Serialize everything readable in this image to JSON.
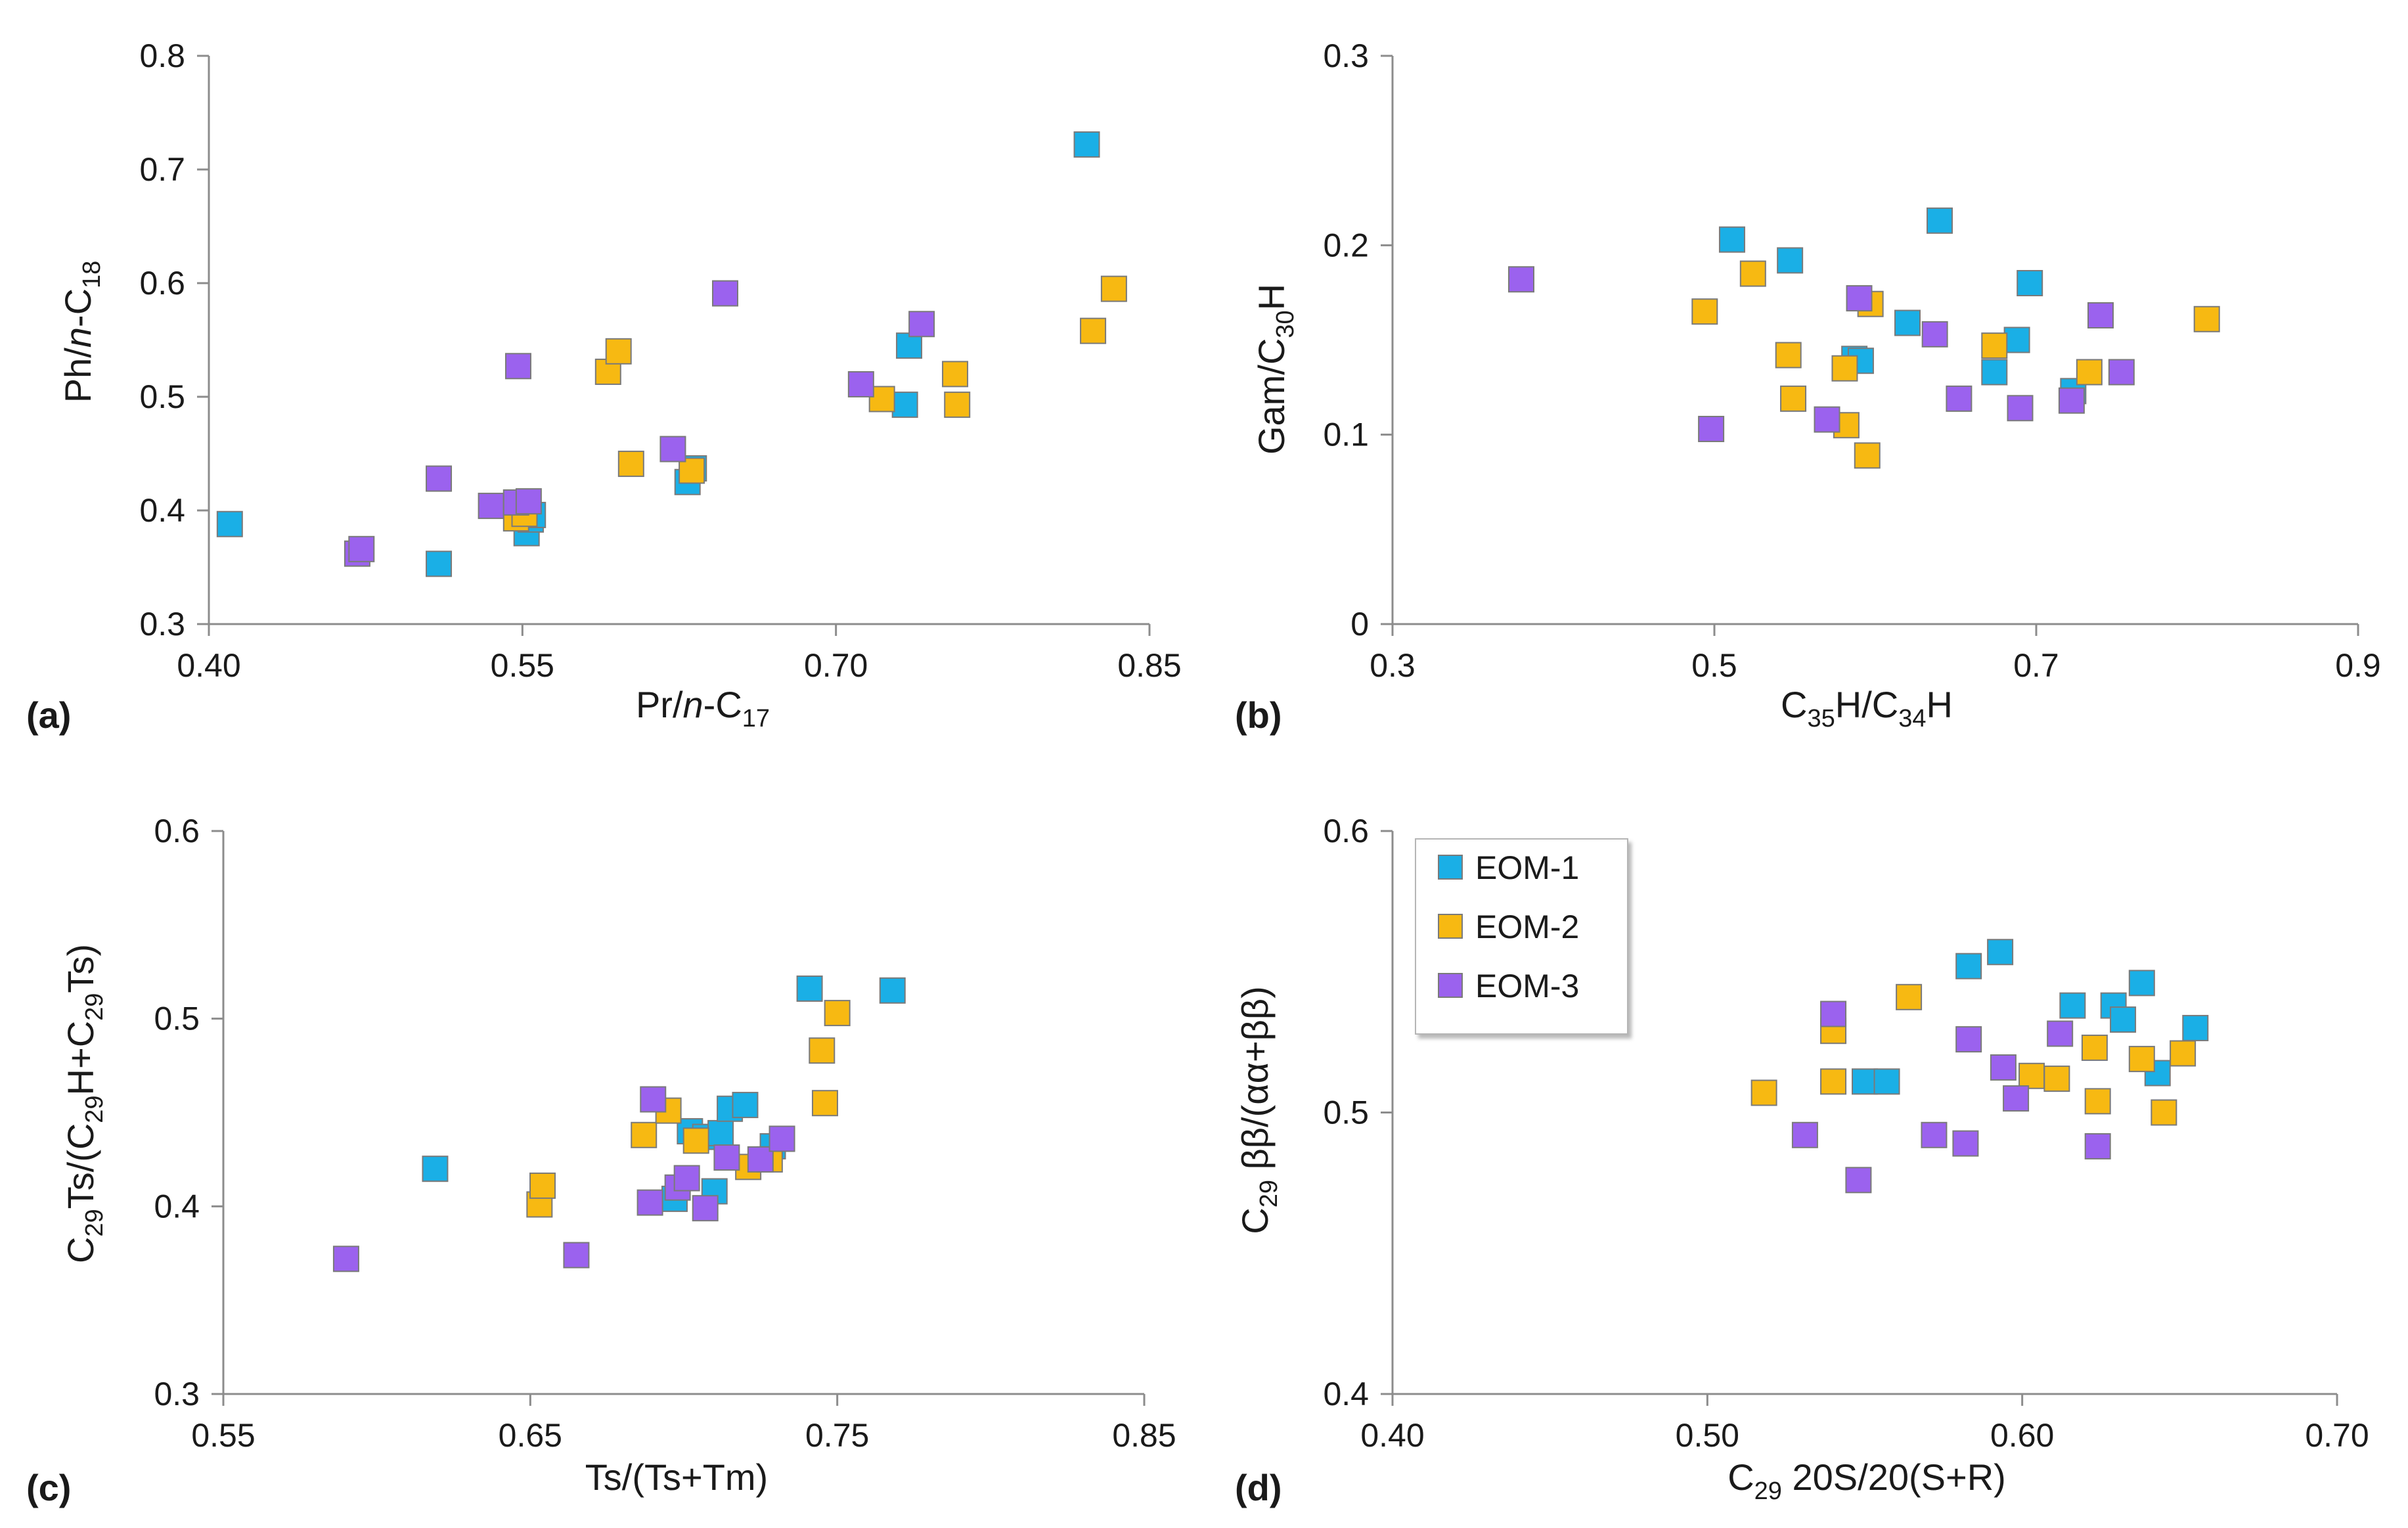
{
  "legend": [
    {
      "name": "EOM-1",
      "color": "#1AAFE6"
    },
    {
      "name": "EOM-2",
      "color": "#F7B912"
    },
    {
      "name": "EOM-3",
      "color": "#9B62EE"
    }
  ],
  "chart_data": [
    {
      "id": "a",
      "panel_label": "(a)",
      "type": "scatter",
      "xlabel": "Pr/n-C17",
      "xlabel_parts": {
        "a": "Pr/",
        "b": "n",
        "c": "-C",
        "sub": "17"
      },
      "ylabel": "Ph/n-C18",
      "ylabel_parts": {
        "a": "Ph/",
        "b": "n",
        "c": "-C",
        "sub": "18"
      },
      "xlim": [
        0.4,
        0.85
      ],
      "ylim": [
        0.3,
        0.8
      ],
      "xticks": [
        "0.40",
        "0.55",
        "0.70",
        "0.85"
      ],
      "yticks": [
        "0.3",
        "0.4",
        "0.5",
        "0.6",
        "0.7",
        "0.8"
      ],
      "series": [
        {
          "name": "EOM-1",
          "x": [
            0.41,
            0.51,
            0.552,
            0.554,
            0.555,
            0.629,
            0.632,
            0.733,
            0.735,
            0.82
          ],
          "y": [
            0.388,
            0.353,
            0.38,
            0.392,
            0.396,
            0.425,
            0.437,
            0.493,
            0.545,
            0.722
          ]
        },
        {
          "name": "EOM-2",
          "x": [
            0.547,
            0.551,
            0.591,
            0.596,
            0.602,
            0.631,
            0.722,
            0.757,
            0.758,
            0.823,
            0.833
          ],
          "y": [
            0.393,
            0.397,
            0.522,
            0.54,
            0.441,
            0.435,
            0.498,
            0.52,
            0.493,
            0.558,
            0.595
          ]
        },
        {
          "name": "EOM-3",
          "x": [
            0.471,
            0.473,
            0.51,
            0.535,
            0.547,
            0.548,
            0.553,
            0.622,
            0.647,
            0.712,
            0.741
          ],
          "y": [
            0.362,
            0.366,
            0.428,
            0.404,
            0.407,
            0.527,
            0.408,
            0.454,
            0.591,
            0.511,
            0.564
          ]
        }
      ]
    },
    {
      "id": "b",
      "panel_label": "(b)",
      "type": "scatter",
      "xlabel": "C35H/C34H",
      "xlabel_parts": {
        "a": "C",
        "sub1": "35",
        "b": "H/C",
        "sub2": "34",
        "c": "H"
      },
      "ylabel": "Gam/C30H",
      "ylabel_parts": {
        "a": "Gam/C",
        "sub": "30",
        "b": "H"
      },
      "xlim": [
        0.3,
        0.9
      ],
      "ylim": [
        0,
        0.3
      ],
      "xticks": [
        "0.3",
        "0.5",
        "0.7",
        "0.9"
      ],
      "yticks": [
        "0",
        "0.1",
        "0.2",
        "0.3"
      ],
      "series": [
        {
          "name": "EOM-1",
          "x": [
            0.511,
            0.547,
            0.587,
            0.591,
            0.62,
            0.64,
            0.674,
            0.688,
            0.696,
            0.723
          ],
          "y": [
            0.203,
            0.192,
            0.14,
            0.139,
            0.159,
            0.213,
            0.133,
            0.15,
            0.18,
            0.123
          ]
        },
        {
          "name": "EOM-2",
          "x": [
            0.494,
            0.524,
            0.546,
            0.549,
            0.581,
            0.582,
            0.595,
            0.597,
            0.674,
            0.733,
            0.806
          ],
          "y": [
            0.165,
            0.185,
            0.142,
            0.119,
            0.135,
            0.105,
            0.089,
            0.169,
            0.147,
            0.133,
            0.161
          ]
        },
        {
          "name": "EOM-3",
          "x": [
            0.38,
            0.498,
            0.57,
            0.59,
            0.637,
            0.652,
            0.69,
            0.722,
            0.74,
            0.753
          ],
          "y": [
            0.182,
            0.103,
            0.108,
            0.172,
            0.153,
            0.119,
            0.114,
            0.118,
            0.163,
            0.133
          ]
        }
      ]
    },
    {
      "id": "c",
      "panel_label": "(c)",
      "type": "scatter",
      "xlabel": "Ts/(Ts+Tm)",
      "ylabel": "C29Ts/(C29H+C29Ts)",
      "ylabel_parts": {
        "a": "C",
        "sub1": "29",
        "b": "Ts/(C",
        "sub2": "29",
        "c": "H+C",
        "sub3": "29",
        "d": "Ts)"
      },
      "xlim": [
        0.55,
        0.85
      ],
      "ylim": [
        0.3,
        0.6
      ],
      "xticks": [
        "0.55",
        "0.65",
        "0.75",
        "0.85"
      ],
      "yticks": [
        "0.3",
        "0.4",
        "0.5",
        "0.6"
      ],
      "series": [
        {
          "name": "EOM-1",
          "x": [
            0.619,
            0.697,
            0.702,
            0.707,
            0.71,
            0.712,
            0.715,
            0.72,
            0.729,
            0.741,
            0.768
          ],
          "y": [
            0.42,
            0.404,
            0.44,
            0.437,
            0.408,
            0.439,
            0.452,
            0.454,
            0.432,
            0.516,
            0.515
          ]
        },
        {
          "name": "EOM-2",
          "x": [
            0.653,
            0.654,
            0.687,
            0.695,
            0.704,
            0.721,
            0.728,
            0.745,
            0.746,
            0.75
          ],
          "y": [
            0.401,
            0.411,
            0.438,
            0.451,
            0.435,
            0.421,
            0.425,
            0.483,
            0.455,
            0.503
          ]
        },
        {
          "name": "EOM-3",
          "x": [
            0.59,
            0.665,
            0.689,
            0.69,
            0.698,
            0.701,
            0.707,
            0.714,
            0.725,
            0.732
          ],
          "y": [
            0.372,
            0.374,
            0.402,
            0.457,
            0.41,
            0.415,
            0.399,
            0.426,
            0.425,
            0.436
          ]
        }
      ]
    },
    {
      "id": "d",
      "panel_label": "(d)",
      "type": "scatter",
      "xlabel": "C29 20S/20(S+R)",
      "xlabel_parts": {
        "a": "C",
        "sub": "29",
        "b": " 20S/20(S+R)"
      },
      "ylabel": "C29 ββ/(αα+ββ)",
      "ylabel_parts": {
        "a": "C",
        "sub": "29",
        "b": " ββ/(αα+ββ)"
      },
      "xlim": [
        0.4,
        0.7
      ],
      "ylim": [
        0.4,
        0.6
      ],
      "xticks": [
        "0.40",
        "0.50",
        "0.60",
        "0.70"
      ],
      "yticks": [
        "0.4",
        "0.5",
        "0.6"
      ],
      "series": [
        {
          "name": "EOM-1",
          "x": [
            0.55,
            0.557,
            0.583,
            0.593,
            0.616,
            0.629,
            0.632,
            0.638,
            0.643,
            0.655
          ],
          "y": [
            0.511,
            0.511,
            0.552,
            0.557,
            0.538,
            0.538,
            0.533,
            0.546,
            0.514,
            0.53
          ]
        },
        {
          "name": "EOM-2",
          "x": [
            0.518,
            0.54,
            0.54,
            0.564,
            0.603,
            0.611,
            0.623,
            0.624,
            0.638,
            0.645,
            0.651
          ],
          "y": [
            0.507,
            0.511,
            0.529,
            0.541,
            0.513,
            0.512,
            0.523,
            0.504,
            0.519,
            0.5,
            0.521
          ]
        },
        {
          "name": "EOM-3",
          "x": [
            0.531,
            0.54,
            0.548,
            0.572,
            0.582,
            0.583,
            0.594,
            0.598,
            0.612,
            0.624
          ],
          "y": [
            0.492,
            0.535,
            0.476,
            0.492,
            0.489,
            0.526,
            0.516,
            0.505,
            0.528,
            0.488
          ]
        }
      ]
    }
  ]
}
